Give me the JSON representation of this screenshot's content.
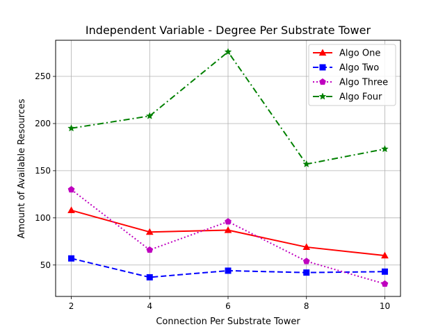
{
  "chart_data": {
    "type": "line",
    "title": "Independent Variable - Degree Per Substrate Tower",
    "xlabel": "Connection Per Substrate Tower",
    "ylabel": "Amount of Available Resources",
    "x": [
      2,
      4,
      6,
      8,
      10
    ],
    "xlim": [
      1.6,
      10.4
    ],
    "ylim": [
      16.7,
      288.3
    ],
    "xticks": [
      2,
      4,
      6,
      8,
      10
    ],
    "yticks": [
      50,
      100,
      150,
      200,
      250
    ],
    "grid": true,
    "legend_position": "top-right",
    "series": [
      {
        "name": "Algo One",
        "values": [
          108,
          85,
          87,
          69,
          60
        ],
        "color": "#ff0000",
        "dash": "solid",
        "marker": "triangle"
      },
      {
        "name": "Algo Two",
        "values": [
          57,
          37,
          44,
          42,
          43
        ],
        "color": "#0000ff",
        "dash": "dashed",
        "marker": "square"
      },
      {
        "name": "Algo Three",
        "values": [
          130,
          66,
          96,
          54,
          30
        ],
        "color": "#bf00bf",
        "dash": "dotted",
        "marker": "pentagon"
      },
      {
        "name": "Algo Four",
        "values": [
          195,
          208,
          276,
          157,
          173
        ],
        "color": "#008000",
        "dash": "dashdot",
        "marker": "star"
      }
    ]
  }
}
